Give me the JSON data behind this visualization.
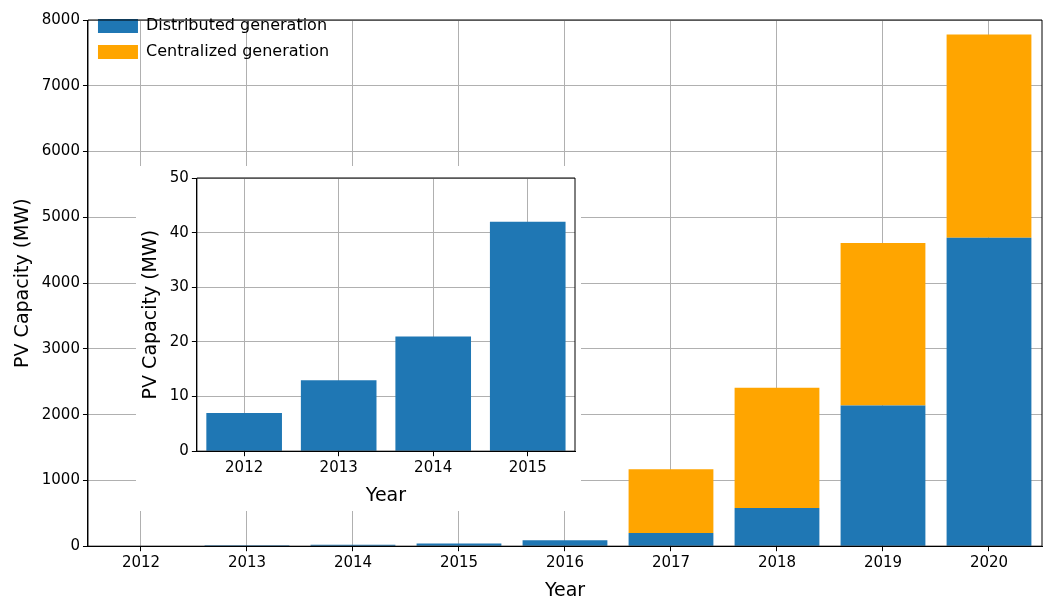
{
  "chart_data": [
    {
      "type": "bar",
      "xlabel": "Year",
      "ylabel": "PV Capacity (MW)",
      "categories": [
        "2012",
        "2013",
        "2014",
        "2015",
        "2016",
        "2017",
        "2018",
        "2019",
        "2020"
      ],
      "stacked": true,
      "ylim": [
        0,
        8000
      ],
      "yticks": [
        0,
        1000,
        2000,
        3000,
        4000,
        5000,
        6000,
        7000,
        8000
      ],
      "grid": true,
      "legend": "top left",
      "series": [
        {
          "name": "Distributed generation",
          "color": "#1f77b4",
          "values": [
            7,
            13,
            21,
            42,
            90,
            200,
            580,
            2140,
            4690
          ]
        },
        {
          "name": "Centralized generation",
          "color": "#ffa500",
          "values": [
            0,
            0,
            0,
            0,
            0,
            970,
            1830,
            2470,
            3090
          ]
        }
      ]
    },
    {
      "type": "bar",
      "xlabel": "Year",
      "ylabel": "PV Capacity (MW)",
      "categories": [
        "2012",
        "2013",
        "2014",
        "2015"
      ],
      "values": [
        7,
        13,
        21,
        42
      ],
      "color": "#1f77b4",
      "ylim": [
        0,
        50
      ],
      "yticks": [
        0,
        10,
        20,
        30,
        40,
        50
      ],
      "grid": true
    }
  ]
}
